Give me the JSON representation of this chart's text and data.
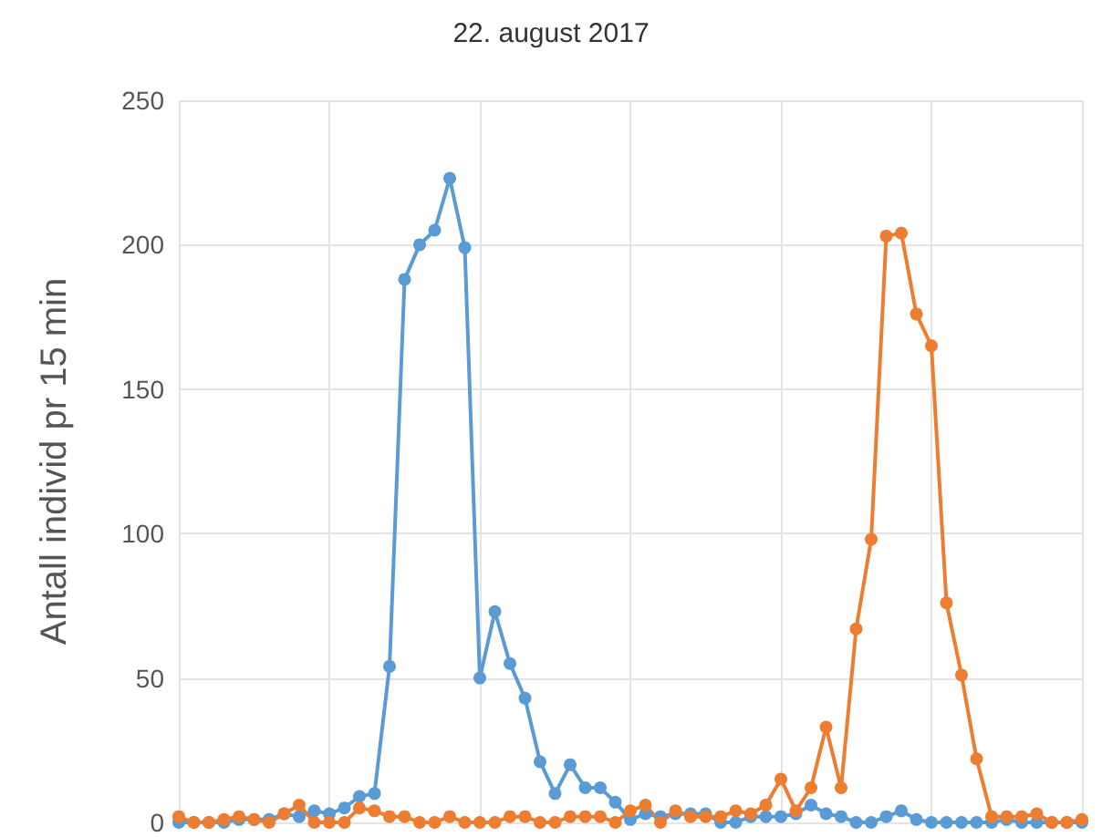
{
  "chart_data": {
    "type": "line",
    "title": "22. august 2017",
    "ylabel": "Antall individ pr 15 min",
    "categories": [
      null,
      null,
      null,
      null,
      null,
      null,
      null,
      null,
      null,
      null,
      null,
      null,
      null,
      null,
      null,
      null,
      null,
      null,
      null,
      null,
      null,
      null,
      null,
      null,
      null,
      null,
      null,
      null,
      null,
      null,
      null,
      null,
      null,
      null,
      null,
      null,
      null,
      null,
      null,
      null,
      null,
      null,
      null,
      null,
      null,
      null,
      null,
      null,
      null,
      null,
      null,
      null,
      null,
      null,
      null,
      null,
      null,
      null,
      null,
      null,
      null
    ],
    "series": [
      {
        "color": "#5b9bd5",
        "values": [
          0,
          0,
          0,
          0,
          1,
          1,
          1,
          3,
          2,
          4,
          3,
          5,
          9,
          10,
          54,
          188,
          200,
          205,
          223,
          199,
          50,
          73,
          55,
          43,
          21,
          10,
          20,
          12,
          12,
          7,
          1,
          3,
          2,
          3,
          3,
          3,
          0,
          0,
          2,
          2,
          2,
          3,
          6,
          3,
          2,
          0,
          0,
          2,
          4,
          1,
          0,
          0,
          0,
          0,
          0,
          1,
          0,
          0,
          0,
          0,
          0
        ]
      },
      {
        "color": "#ed7d31",
        "values": [
          2,
          0,
          0,
          1,
          2,
          1,
          0,
          3,
          6,
          0,
          0,
          0,
          5,
          4,
          2,
          2,
          0,
          0,
          2,
          0,
          0,
          0,
          2,
          2,
          0,
          0,
          2,
          2,
          2,
          0,
          4,
          6,
          0,
          4,
          2,
          2,
          2,
          4,
          3,
          6,
          15,
          4,
          12,
          33,
          12,
          67,
          98,
          203,
          204,
          176,
          165,
          76,
          51,
          22,
          2,
          2,
          2,
          3,
          0,
          0,
          1
        ]
      }
    ],
    "ylim": [
      0,
      250
    ],
    "yticks": [
      0,
      50,
      100,
      150,
      200,
      250
    ],
    "grid": true,
    "marker": "circle",
    "line_style": "solid"
  }
}
